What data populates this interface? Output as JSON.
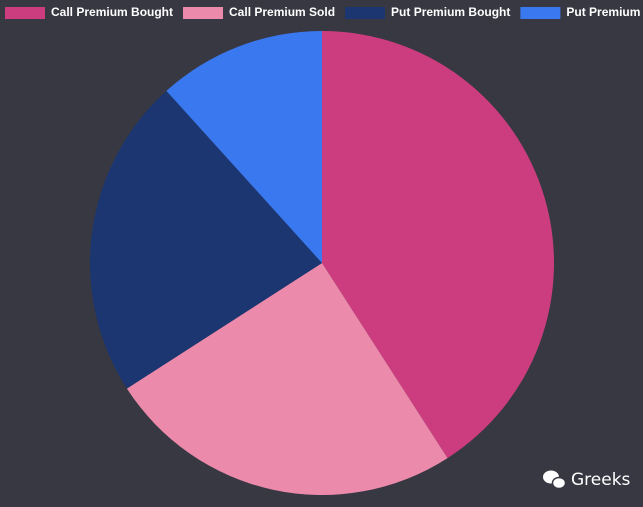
{
  "chart_data": {
    "type": "pie",
    "categories": [
      "Call Premium Bought",
      "Call Premium Sold",
      "Put Premium Bought",
      "Put Premium Sold"
    ],
    "values": [
      40.9,
      25,
      22.4,
      11.7
    ],
    "colors": [
      "#cc3d7f",
      "#ec8aab",
      "#1b3670",
      "#3a78f0"
    ],
    "legend": "top",
    "watermark": "Greeks"
  }
}
